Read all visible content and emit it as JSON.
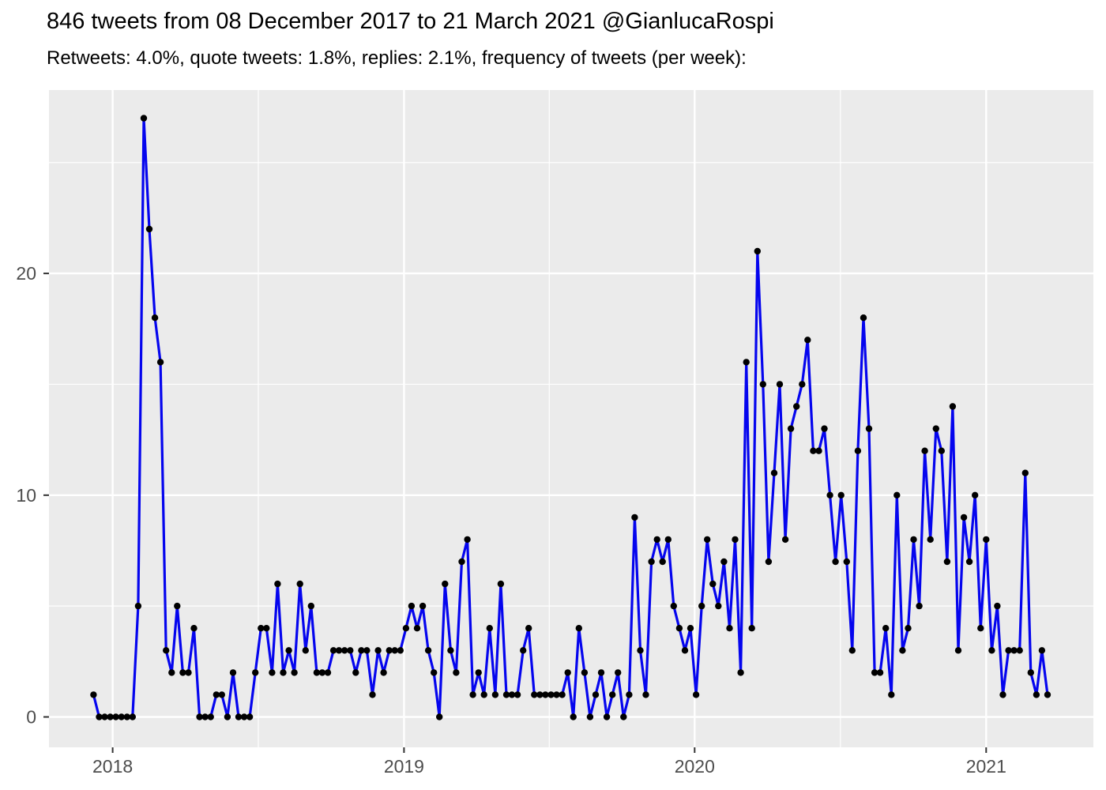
{
  "chart_data": {
    "type": "line",
    "title": "846 tweets from 08 December 2017 to 21 March 2021 @GianlucaRospi",
    "subtitle": "Retweets: 4.0%, quote tweets: 1.8%, replies: 2.1%, frequency of tweets (per week):",
    "account": "@GianlucaRospi",
    "total_tweets": 846,
    "retweets_pct": "4.0%",
    "quote_tweets_pct": "1.8%",
    "replies_pct": "2.1%",
    "frequency": "per week",
    "x_range_labels": [
      "08 December 2017",
      "21 March 2021"
    ],
    "x_tick_labels": [
      "2018",
      "2019",
      "2020",
      "2021"
    ],
    "y_tick_labels": [
      "0",
      "10",
      "20"
    ],
    "y_tick_values": [
      0,
      10,
      20
    ],
    "y_minor_values": [
      5,
      15,
      25
    ],
    "ylim": [
      0,
      27
    ],
    "grid": "white major+minor gridlines on gray panel",
    "legend": "none",
    "values": [
      1,
      0,
      0,
      0,
      0,
      0,
      0,
      0,
      5,
      27,
      22,
      18,
      16,
      3,
      2,
      5,
      2,
      2,
      4,
      0,
      0,
      0,
      1,
      1,
      0,
      2,
      0,
      0,
      0,
      2,
      4,
      4,
      2,
      6,
      2,
      3,
      2,
      6,
      3,
      5,
      2,
      2,
      2,
      3,
      3,
      3,
      3,
      2,
      3,
      3,
      1,
      3,
      2,
      3,
      3,
      3,
      4,
      5,
      4,
      5,
      3,
      2,
      0,
      6,
      3,
      2,
      7,
      8,
      1,
      2,
      1,
      4,
      1,
      6,
      1,
      1,
      1,
      3,
      4,
      1,
      1,
      1,
      1,
      1,
      1,
      2,
      0,
      4,
      2,
      0,
      1,
      2,
      0,
      1,
      2,
      0,
      1,
      9,
      3,
      1,
      7,
      8,
      7,
      8,
      5,
      4,
      3,
      4,
      1,
      5,
      8,
      6,
      5,
      7,
      4,
      8,
      2,
      16,
      4,
      21,
      15,
      7,
      11,
      15,
      8,
      13,
      14,
      15,
      17,
      12,
      12,
      13,
      10,
      7,
      10,
      7,
      3,
      12,
      18,
      13,
      2,
      2,
      4,
      1,
      10,
      3,
      4,
      8,
      5,
      12,
      8,
      13,
      12,
      7,
      14,
      3,
      9,
      7,
      10,
      4,
      8,
      3,
      5,
      1,
      3,
      3,
      3,
      11,
      2,
      1,
      3,
      1
    ],
    "colors": {
      "line": "#0505EE",
      "point": "#000000",
      "panel": "#EBEBEB",
      "grid": "#FFFFFF",
      "tick_text": "#4D4D4D",
      "tick_mark": "#333333",
      "title_text": "#000000"
    }
  }
}
